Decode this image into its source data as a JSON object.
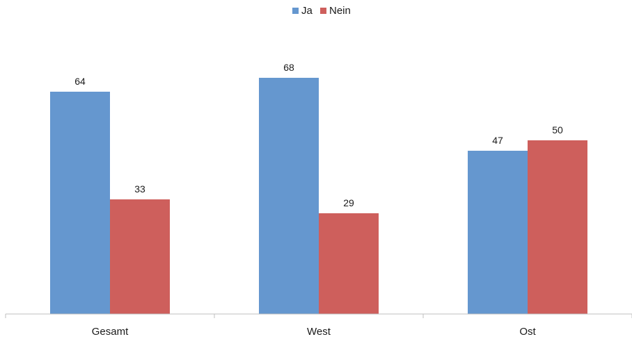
{
  "chart_data": {
    "type": "bar",
    "categories": [
      "Gesamt",
      "West",
      "Ost"
    ],
    "series": [
      {
        "name": "Ja",
        "values": [
          64,
          68,
          47
        ],
        "color": "#6597cf"
      },
      {
        "name": "Nein",
        "values": [
          33,
          29,
          50
        ],
        "color": "#ce5f5c"
      }
    ],
    "ylim": [
      0,
      80
    ],
    "grid": false,
    "legend_position": "top-center",
    "xlabel": "",
    "ylabel": ""
  }
}
